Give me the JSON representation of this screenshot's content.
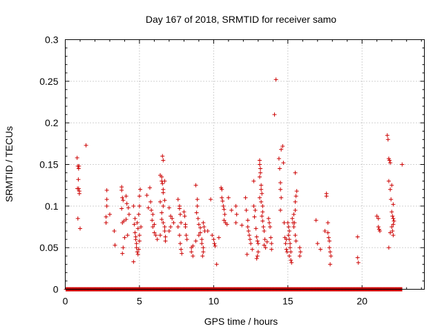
{
  "chart_data": {
    "type": "scatter",
    "title": "Day 167 of 2018, SRMTID for receiver samo",
    "xlabel": "GPS time / hours",
    "ylabel": "SRMTID / TECUs",
    "xlim": [
      0,
      24.2
    ],
    "ylim": [
      0,
      0.3
    ],
    "x_ticks": [
      0,
      5,
      10,
      15,
      20
    ],
    "x_tick_labels": [
      "0",
      "5",
      "10",
      "15",
      "20"
    ],
    "y_ticks": [
      0,
      0.05,
      0.1,
      0.15,
      0.2,
      0.25,
      0.3
    ],
    "y_tick_labels": [
      "0",
      "0.05",
      "0.1",
      "0.15",
      "0.2",
      "0.25",
      "0.3"
    ],
    "grid": true,
    "marker": "+",
    "color": "#cc0000",
    "baseline": {
      "y": 0,
      "x_start": 0.05,
      "x_end": 22.7,
      "step": 0.033
    },
    "series": [
      {
        "name": "SRMTID",
        "points": [
          [
            0.8,
            0.158
          ],
          [
            0.85,
            0.148
          ],
          [
            0.9,
            0.145
          ],
          [
            0.88,
            0.132
          ],
          [
            0.9,
            0.121
          ],
          [
            0.95,
            0.118
          ],
          [
            0.95,
            0.115
          ],
          [
            0.85,
            0.085
          ],
          [
            1.0,
            0.073
          ],
          [
            1.4,
            0.173
          ],
          [
            0.92,
            0.148
          ],
          [
            0.82,
            0.121
          ],
          [
            2.8,
            0.119
          ],
          [
            2.8,
            0.108
          ],
          [
            2.8,
            0.1
          ],
          [
            2.75,
            0.087
          ],
          [
            2.75,
            0.08
          ],
          [
            3.0,
            0.09
          ],
          [
            3.3,
            0.07
          ],
          [
            3.35,
            0.053
          ],
          [
            3.8,
            0.123
          ],
          [
            3.8,
            0.119
          ],
          [
            3.85,
            0.11
          ],
          [
            3.9,
            0.107
          ],
          [
            3.8,
            0.097
          ],
          [
            3.85,
            0.08
          ],
          [
            3.95,
            0.082
          ],
          [
            4.1,
            0.084
          ],
          [
            4.0,
            0.062
          ],
          [
            3.9,
            0.05
          ],
          [
            3.85,
            0.043
          ],
          [
            4.15,
            0.103
          ],
          [
            4.25,
            0.098
          ],
          [
            4.1,
            0.112
          ],
          [
            4.3,
            0.09
          ],
          [
            4.2,
            0.065
          ],
          [
            4.6,
            0.1
          ],
          [
            4.7,
            0.085
          ],
          [
            4.65,
            0.078
          ],
          [
            4.7,
            0.068
          ],
          [
            4.75,
            0.063
          ],
          [
            4.75,
            0.06
          ],
          [
            4.8,
            0.055
          ],
          [
            4.8,
            0.05
          ],
          [
            4.85,
            0.045
          ],
          [
            4.9,
            0.042
          ],
          [
            4.95,
            0.048
          ],
          [
            5.0,
            0.058
          ],
          [
            5.0,
            0.065
          ],
          [
            4.9,
            0.073
          ],
          [
            4.85,
            0.08
          ],
          [
            4.95,
            0.09
          ],
          [
            5.0,
            0.1
          ],
          [
            5.0,
            0.112
          ],
          [
            5.05,
            0.12
          ],
          [
            4.6,
            0.033
          ],
          [
            5.1,
            0.075
          ],
          [
            5.5,
            0.113
          ],
          [
            5.6,
            0.098
          ],
          [
            5.75,
            0.105
          ],
          [
            5.8,
            0.095
          ],
          [
            5.85,
            0.083
          ],
          [
            5.9,
            0.075
          ],
          [
            6.0,
            0.078
          ],
          [
            6.0,
            0.068
          ],
          [
            6.1,
            0.065
          ],
          [
            6.2,
            0.06
          ],
          [
            5.7,
            0.122
          ],
          [
            5.9,
            0.09
          ],
          [
            6.4,
            0.137
          ],
          [
            6.5,
            0.135
          ],
          [
            6.5,
            0.13
          ],
          [
            6.55,
            0.127
          ],
          [
            6.6,
            0.12
          ],
          [
            6.6,
            0.116
          ],
          [
            6.55,
            0.16
          ],
          [
            6.6,
            0.155
          ],
          [
            6.7,
            0.13
          ],
          [
            6.7,
            0.107
          ],
          [
            6.6,
            0.1
          ],
          [
            6.5,
            0.092
          ],
          [
            6.5,
            0.084
          ],
          [
            6.6,
            0.08
          ],
          [
            6.7,
            0.075
          ],
          [
            6.7,
            0.07
          ],
          [
            6.75,
            0.063
          ],
          [
            6.75,
            0.058
          ],
          [
            6.4,
            0.065
          ],
          [
            6.4,
            0.105
          ],
          [
            7.0,
            0.098
          ],
          [
            7.1,
            0.088
          ],
          [
            7.2,
            0.085
          ],
          [
            7.3,
            0.08
          ],
          [
            7.1,
            0.075
          ],
          [
            7.0,
            0.07
          ],
          [
            7.6,
            0.108
          ],
          [
            7.7,
            0.1
          ],
          [
            7.7,
            0.097
          ],
          [
            7.75,
            0.09
          ],
          [
            7.8,
            0.08
          ],
          [
            7.7,
            0.065
          ],
          [
            7.75,
            0.055
          ],
          [
            7.8,
            0.048
          ],
          [
            7.85,
            0.043
          ],
          [
            7.6,
            0.075
          ],
          [
            8.0,
            0.093
          ],
          [
            8.05,
            0.088
          ],
          [
            8.1,
            0.075
          ],
          [
            8.15,
            0.065
          ],
          [
            8.2,
            0.06
          ],
          [
            8.1,
            0.078
          ],
          [
            8.5,
            0.05
          ],
          [
            8.5,
            0.045
          ],
          [
            8.6,
            0.04
          ],
          [
            8.6,
            0.052
          ],
          [
            8.8,
            0.125
          ],
          [
            8.9,
            0.108
          ],
          [
            8.9,
            0.1
          ],
          [
            8.85,
            0.092
          ],
          [
            8.95,
            0.085
          ],
          [
            9.0,
            0.078
          ],
          [
            9.1,
            0.074
          ],
          [
            9.1,
            0.068
          ],
          [
            9.2,
            0.06
          ],
          [
            9.2,
            0.055
          ],
          [
            9.3,
            0.05
          ],
          [
            9.3,
            0.045
          ],
          [
            9.25,
            0.04
          ],
          [
            9.3,
            0.08
          ],
          [
            9.35,
            0.075
          ],
          [
            9.4,
            0.07
          ],
          [
            8.8,
            0.058
          ],
          [
            9.0,
            0.065
          ],
          [
            9.6,
            0.07
          ],
          [
            9.8,
            0.108
          ],
          [
            9.9,
            0.065
          ],
          [
            10.0,
            0.06
          ],
          [
            10.05,
            0.055
          ],
          [
            10.1,
            0.052
          ],
          [
            10.2,
            0.03
          ],
          [
            10.35,
            0.062
          ],
          [
            10.5,
            0.122
          ],
          [
            10.55,
            0.12
          ],
          [
            10.55,
            0.11
          ],
          [
            10.6,
            0.106
          ],
          [
            10.65,
            0.1
          ],
          [
            10.7,
            0.096
          ],
          [
            10.75,
            0.09
          ],
          [
            10.8,
            0.08
          ],
          [
            10.9,
            0.078
          ],
          [
            10.7,
            0.083
          ],
          [
            11.0,
            0.11
          ],
          [
            11.2,
            0.095
          ],
          [
            11.5,
            0.1
          ],
          [
            11.5,
            0.08
          ],
          [
            11.55,
            0.09
          ],
          [
            11.9,
            0.077
          ],
          [
            12.15,
            0.11
          ],
          [
            12.2,
            0.095
          ],
          [
            12.3,
            0.083
          ],
          [
            12.3,
            0.075
          ],
          [
            12.35,
            0.07
          ],
          [
            12.4,
            0.065
          ],
          [
            12.45,
            0.06
          ],
          [
            12.5,
            0.055
          ],
          [
            12.25,
            0.042
          ],
          [
            12.6,
            0.048
          ],
          [
            12.7,
            0.13
          ],
          [
            12.7,
            0.1
          ],
          [
            12.8,
            0.095
          ],
          [
            12.75,
            0.087
          ],
          [
            12.85,
            0.073
          ],
          [
            12.9,
            0.063
          ],
          [
            12.95,
            0.058
          ],
          [
            13.0,
            0.055
          ],
          [
            12.95,
            0.04
          ],
          [
            12.9,
            0.037
          ],
          [
            13.0,
            0.045
          ],
          [
            13.1,
            0.155
          ],
          [
            13.1,
            0.15
          ],
          [
            13.15,
            0.145
          ],
          [
            13.15,
            0.14
          ],
          [
            13.1,
            0.135
          ],
          [
            13.2,
            0.125
          ],
          [
            13.2,
            0.12
          ],
          [
            13.25,
            0.115
          ],
          [
            13.1,
            0.11
          ],
          [
            13.2,
            0.105
          ],
          [
            13.3,
            0.1
          ],
          [
            13.3,
            0.093
          ],
          [
            13.25,
            0.088
          ],
          [
            13.3,
            0.082
          ],
          [
            13.35,
            0.075
          ],
          [
            13.4,
            0.07
          ],
          [
            13.45,
            0.06
          ],
          [
            13.4,
            0.053
          ],
          [
            13.5,
            0.05
          ],
          [
            13.6,
            0.057
          ],
          [
            13.7,
            0.085
          ],
          [
            13.75,
            0.08
          ],
          [
            13.8,
            0.075
          ],
          [
            13.85,
            0.062
          ],
          [
            13.9,
            0.055
          ],
          [
            13.9,
            0.048
          ],
          [
            14.1,
            0.21
          ],
          [
            14.2,
            0.252
          ],
          [
            14.4,
            0.157
          ],
          [
            14.45,
            0.145
          ],
          [
            14.5,
            0.128
          ],
          [
            14.5,
            0.12
          ],
          [
            14.55,
            0.11
          ],
          [
            14.5,
            0.095
          ],
          [
            14.55,
            0.168
          ],
          [
            14.65,
            0.172
          ],
          [
            14.7,
            0.152
          ],
          [
            14.75,
            0.08
          ],
          [
            14.8,
            0.062
          ],
          [
            14.85,
            0.055
          ],
          [
            14.9,
            0.06
          ],
          [
            14.9,
            0.048
          ],
          [
            14.95,
            0.045
          ],
          [
            15.0,
            0.08
          ],
          [
            15.05,
            0.075
          ],
          [
            15.1,
            0.07
          ],
          [
            15.05,
            0.065
          ],
          [
            15.1,
            0.06
          ],
          [
            15.15,
            0.055
          ],
          [
            15.15,
            0.05
          ],
          [
            15.2,
            0.045
          ],
          [
            15.1,
            0.04
          ],
          [
            15.2,
            0.035
          ],
          [
            15.25,
            0.032
          ],
          [
            15.3,
            0.085
          ],
          [
            15.35,
            0.08
          ],
          [
            15.4,
            0.075
          ],
          [
            15.5,
            0.105
          ],
          [
            15.5,
            0.095
          ],
          [
            15.5,
            0.14
          ],
          [
            15.6,
            0.118
          ],
          [
            15.55,
            0.112
          ],
          [
            15.4,
            0.09
          ],
          [
            15.45,
            0.08
          ],
          [
            15.5,
            0.065
          ],
          [
            15.55,
            0.058
          ],
          [
            15.8,
            0.05
          ],
          [
            15.85,
            0.045
          ],
          [
            15.8,
            0.04
          ],
          [
            16.9,
            0.083
          ],
          [
            17.0,
            0.055
          ],
          [
            17.2,
            0.048
          ],
          [
            17.5,
            0.07
          ],
          [
            17.6,
            0.115
          ],
          [
            17.6,
            0.112
          ],
          [
            17.7,
            0.08
          ],
          [
            17.7,
            0.068
          ],
          [
            17.75,
            0.062
          ],
          [
            17.8,
            0.058
          ],
          [
            17.8,
            0.05
          ],
          [
            17.85,
            0.045
          ],
          [
            17.9,
            0.04
          ],
          [
            17.85,
            0.03
          ],
          [
            19.7,
            0.063
          ],
          [
            19.7,
            0.038
          ],
          [
            19.75,
            0.032
          ],
          [
            21.0,
            0.088
          ],
          [
            21.1,
            0.085
          ],
          [
            21.1,
            0.075
          ],
          [
            21.15,
            0.072
          ],
          [
            21.2,
            0.07
          ],
          [
            21.7,
            0.185
          ],
          [
            21.75,
            0.18
          ],
          [
            21.8,
            0.157
          ],
          [
            21.85,
            0.155
          ],
          [
            21.9,
            0.152
          ],
          [
            21.8,
            0.13
          ],
          [
            21.9,
            0.12
          ],
          [
            22.0,
            0.125
          ],
          [
            21.95,
            0.108
          ],
          [
            22.1,
            0.102
          ],
          [
            22.0,
            0.093
          ],
          [
            22.05,
            0.088
          ],
          [
            22.1,
            0.085
          ],
          [
            22.15,
            0.082
          ],
          [
            22.1,
            0.078
          ],
          [
            22.0,
            0.075
          ],
          [
            22.05,
            0.07
          ],
          [
            22.1,
            0.065
          ],
          [
            21.9,
            0.068
          ],
          [
            21.8,
            0.05
          ],
          [
            22.7,
            0.15
          ]
        ]
      }
    ]
  }
}
